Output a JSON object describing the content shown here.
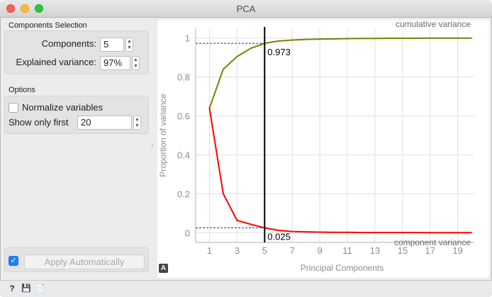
{
  "window": {
    "title": "PCA"
  },
  "controls": {
    "components_section": {
      "title": "Components Selection",
      "components_label": "Components:",
      "components_value": "5",
      "variance_label": "Explained variance:",
      "variance_value": "97%"
    },
    "options_section": {
      "title": "Options",
      "normalize_label": "Normalize variables",
      "normalize_checked": false,
      "show_first_label": "Show only first",
      "show_first_value": "20"
    },
    "apply": {
      "label": "Apply Automatically",
      "auto_checked": true
    }
  },
  "icons": {
    "checkmark": "✓",
    "stepper_up": "▲",
    "stepper_down": "▼",
    "splitter": "›",
    "a_badge": "A",
    "help": "?",
    "save": "💾",
    "report": "📄"
  },
  "chart_data": {
    "type": "line",
    "xlabel": "Principal Components",
    "ylabel": "Proportion of variance",
    "xlim": [
      0,
      20.2
    ],
    "ylim": [
      -0.05,
      1.05
    ],
    "xticks": [
      "1",
      "3",
      "5",
      "7",
      "9",
      "11",
      "13",
      "15",
      "17",
      "19"
    ],
    "yticks": [
      "0",
      "0.2",
      "0.4",
      "0.6",
      "0.8",
      "1"
    ],
    "grid": true,
    "selected_component": 5,
    "annotations": [
      {
        "text": "0.973",
        "x": 5,
        "y": 0.973
      },
      {
        "text": "0.025",
        "x": 5,
        "y": 0.025
      }
    ],
    "series": [
      {
        "name": "cumulative variance",
        "color": "#7f7f00",
        "x": [
          1,
          2,
          3,
          4,
          5,
          6,
          7,
          8,
          9,
          10,
          11,
          12,
          13,
          14,
          15,
          16,
          17,
          18,
          19,
          20
        ],
        "values": [
          0.64,
          0.84,
          0.905,
          0.948,
          0.973,
          0.985,
          0.99,
          0.993,
          0.995,
          0.996,
          0.997,
          0.998,
          0.998,
          0.999,
          0.999,
          0.999,
          1.0,
          1.0,
          1.0,
          1.0
        ]
      },
      {
        "name": "component variance",
        "color": "#ff0000",
        "x": [
          1,
          2,
          3,
          4,
          5,
          6,
          7,
          8,
          9,
          10,
          11,
          12,
          13,
          14,
          15,
          16,
          17,
          18,
          19,
          20
        ],
        "values": [
          0.64,
          0.2,
          0.063,
          0.043,
          0.025,
          0.012,
          0.006,
          0.004,
          0.003,
          0.002,
          0.002,
          0.001,
          0.001,
          0.001,
          0.001,
          0.001,
          0.0,
          0.0,
          0.0,
          0.0
        ]
      }
    ]
  }
}
